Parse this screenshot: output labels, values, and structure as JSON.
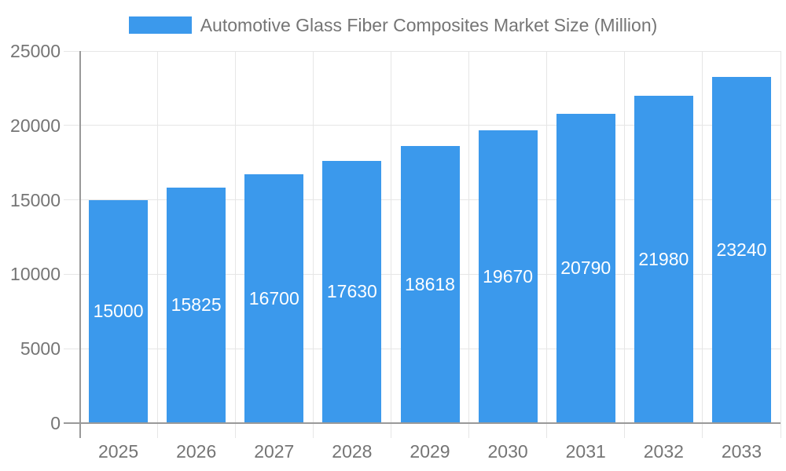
{
  "chart_data": {
    "type": "bar",
    "title": "Automotive Glass Fiber Composites Market Size (Million)",
    "legend": {
      "label": "Automotive Glass Fiber Composites Market Size (Million)",
      "position": "top"
    },
    "categories": [
      "2025",
      "2026",
      "2027",
      "2028",
      "2029",
      "2030",
      "2031",
      "2032",
      "2033"
    ],
    "values": [
      15000,
      15825,
      16700,
      17630,
      18618,
      19670,
      20790,
      21980,
      23240
    ],
    "xlabel": "",
    "ylabel": "",
    "ylim": [
      0,
      25000
    ],
    "yticks": [
      0,
      5000,
      10000,
      15000,
      20000,
      25000
    ],
    "grid": true,
    "colors": {
      "bar": "#3b99ec",
      "value_label": "#ffffff",
      "axis_label": "#757575",
      "gridline": "#e6e6e6",
      "axis_line": "#999999",
      "background": "#ffffff"
    }
  }
}
